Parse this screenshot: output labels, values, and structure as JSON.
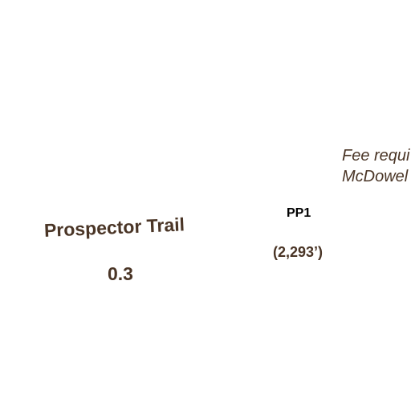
{
  "map": {
    "trail": {
      "name": "Prospector Trail",
      "distance": "0.3"
    },
    "point": {
      "code": "PP1",
      "elevation": "(2,293’)"
    },
    "note": {
      "line1": "Fee requi",
      "line2": "McDowel"
    },
    "colors": {
      "label_brown": "#4a3526",
      "point_code": "#000000",
      "background": "#ffffff"
    }
  }
}
